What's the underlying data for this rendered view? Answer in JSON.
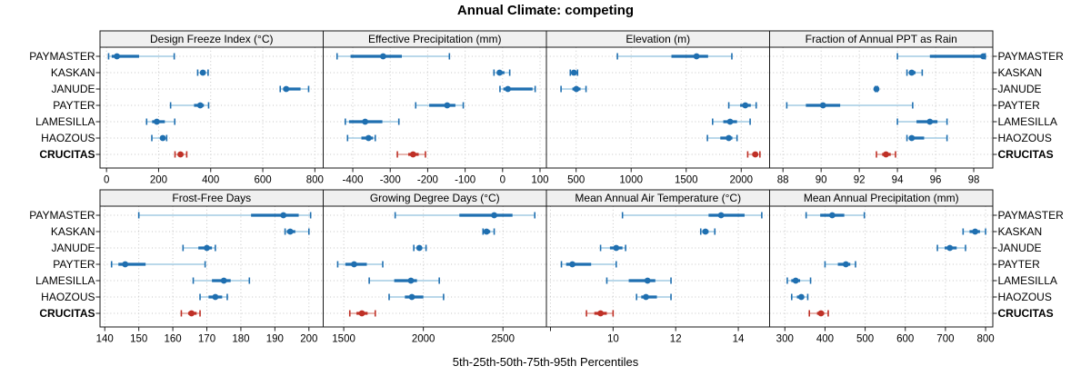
{
  "title": "Annual Climate: competing",
  "caption": "5th-25th-50th-75th-95th Percentiles",
  "locations": [
    "PAYMASTER",
    "KASKAN",
    "JANUDE",
    "PAYTER",
    "LAMESILLA",
    "HAOZOUS",
    "CRUCITAS"
  ],
  "highlighted_location": "CRUCITAS",
  "colors": {
    "series_blue": "#1f6fb0",
    "series_blue_light": "#a3cce4",
    "highlight_red": "#bf3026",
    "highlight_red_light": "#e0a098",
    "gridline": "#c6c6c6",
    "strip_background": "#f0f0f0",
    "panel_border": "#1a1a1a",
    "text": "#000000"
  },
  "chart_data": {
    "type": "dotplot",
    "note": "trellis of percentile intervals; each series value array is [5th,25th,50th,75th,95th] percentile",
    "percentiles": [
      5,
      25,
      50,
      75,
      95
    ],
    "categories": [
      "PAYMASTER",
      "KASKAN",
      "JANUDE",
      "PAYTER",
      "LAMESILLA",
      "HAOZOUS",
      "CRUCITAS"
    ],
    "panels": [
      {
        "title": "Design Freeze Index (°C)",
        "xlim": [
          -25,
          832
        ],
        "ticks": [
          {
            "v": 0,
            "label": "0"
          },
          {
            "v": 200,
            "label": "200"
          },
          {
            "v": 400,
            "label": "400"
          },
          {
            "v": 600,
            "label": "600"
          },
          {
            "v": 800,
            "label": "800"
          }
        ],
        "series": [
          {
            "name": "PAYMASTER",
            "values": [
              8,
              20,
              40,
              125,
              260
            ]
          },
          {
            "name": "KASKAN",
            "values": [
              350,
              360,
              370,
              378,
              390
            ]
          },
          {
            "name": "JANUDE",
            "values": [
              667,
              678,
              690,
              745,
              776
            ]
          },
          {
            "name": "PAYTER",
            "values": [
              246,
              336,
              360,
              374,
              392
            ]
          },
          {
            "name": "LAMESILLA",
            "values": [
              154,
              175,
              193,
              224,
              262
            ]
          },
          {
            "name": "HAOZOUS",
            "values": [
              174,
              208,
              216,
              225,
              231
            ]
          },
          {
            "name": "CRUCITAS",
            "values": [
              263,
              275,
              284,
              295,
              308
            ]
          }
        ]
      },
      {
        "title": "Effective Precipitation (mm)",
        "xlim": [
          -479,
          117
        ],
        "ticks": [
          {
            "v": -400,
            "label": "-400"
          },
          {
            "v": -300,
            "label": "-300"
          },
          {
            "v": -200,
            "label": "-200"
          },
          {
            "v": -100,
            "label": "-100"
          },
          {
            "v": 0,
            "label": "0"
          },
          {
            "v": 100,
            "label": "100"
          }
        ],
        "series": [
          {
            "name": "PAYMASTER",
            "values": [
              -442,
              -406,
              -319,
              -269,
              -142
            ]
          },
          {
            "name": "KASKAN",
            "values": [
              -23,
              -14,
              -8,
              5,
              19
            ]
          },
          {
            "name": "JANUDE",
            "values": [
              -7,
              2,
              14,
              80,
              87
            ]
          },
          {
            "name": "PAYTER",
            "values": [
              -232,
              -196,
              -148,
              -126,
              -105
            ]
          },
          {
            "name": "LAMESILLA",
            "values": [
              -420,
              -410,
              -367,
              -321,
              -277
            ]
          },
          {
            "name": "HAOZOUS",
            "values": [
              -414,
              -377,
              -358,
              -346,
              -340
            ]
          },
          {
            "name": "CRUCITAS",
            "values": [
              -281,
              -252,
              -239,
              -224,
              -206
            ]
          }
        ]
      },
      {
        "title": "Elevation (m)",
        "xlim": [
          230,
          2258
        ],
        "ticks": [
          {
            "v": 500,
            "label": "500"
          },
          {
            "v": 1000,
            "label": "1000"
          },
          {
            "v": 1500,
            "label": "1500"
          },
          {
            "v": 2000,
            "label": "2000"
          }
        ],
        "series": [
          {
            "name": "PAYMASTER",
            "values": [
              875,
              1366,
              1594,
              1699,
              1915
            ]
          },
          {
            "name": "KASKAN",
            "values": [
              447,
              465,
              480,
              495,
              513
            ]
          },
          {
            "name": "JANUDE",
            "values": [
              363,
              466,
              502,
              540,
              590
            ]
          },
          {
            "name": "PAYTER",
            "values": [
              1887,
              1990,
              2037,
              2087,
              2136
            ]
          },
          {
            "name": "LAMESILLA",
            "values": [
              1740,
              1837,
              1899,
              1962,
              2081
            ]
          },
          {
            "name": "HAOZOUS",
            "values": [
              1693,
              1810,
              1887,
              1920,
              1962
            ]
          },
          {
            "name": "CRUCITAS",
            "values": [
              2059,
              2100,
              2128,
              2150,
              2170
            ]
          }
        ]
      },
      {
        "title": "Fraction of Annual PPT as Rain",
        "xlim": [
          87.3,
          99.0
        ],
        "ticks": [
          {
            "v": 88,
            "label": "88"
          },
          {
            "v": 90,
            "label": "90"
          },
          {
            "v": 92,
            "label": "92"
          },
          {
            "v": 94,
            "label": "94"
          },
          {
            "v": 96,
            "label": "96"
          },
          {
            "v": 98,
            "label": "98"
          }
        ],
        "series": [
          {
            "name": "PAYMASTER",
            "values": [
              94.0,
              95.7,
              98.5,
              98.55,
              98.6
            ]
          },
          {
            "name": "KASKAN",
            "values": [
              94.5,
              94.65,
              94.75,
              94.95,
              95.3
            ]
          },
          {
            "name": "JANUDE",
            "values": [
              92.85,
              92.87,
              92.9,
              92.92,
              92.95
            ]
          },
          {
            "name": "PAYTER",
            "values": [
              88.2,
              89.2,
              90.1,
              91.0,
              94.8
            ]
          },
          {
            "name": "LAMESILLA",
            "values": [
              94.0,
              95.0,
              95.7,
              96.1,
              96.6
            ]
          },
          {
            "name": "HAOZOUS",
            "values": [
              94.5,
              94.6,
              94.75,
              95.4,
              96.6
            ]
          },
          {
            "name": "CRUCITAS",
            "values": [
              92.9,
              93.2,
              93.4,
              93.65,
              93.9
            ]
          }
        ]
      },
      {
        "title": "Frost-Free Days",
        "xlim": [
          138.6,
          204.2
        ],
        "ticks": [
          {
            "v": 140,
            "label": "140"
          },
          {
            "v": 150,
            "label": "150"
          },
          {
            "v": 160,
            "label": "160"
          },
          {
            "v": 170,
            "label": "170"
          },
          {
            "v": 180,
            "label": "180"
          },
          {
            "v": 190,
            "label": "190"
          },
          {
            "v": 200,
            "label": "200"
          }
        ],
        "series": [
          {
            "name": "PAYMASTER",
            "values": [
              150,
              183,
              192.5,
              197,
              200.5
            ]
          },
          {
            "name": "KASKAN",
            "values": [
              193,
              193.5,
              194.5,
              196,
              200
            ]
          },
          {
            "name": "JANUDE",
            "values": [
              163,
              167.5,
              170,
              171.5,
              172.5
            ]
          },
          {
            "name": "PAYTER",
            "values": [
              142,
              144,
              146,
              152,
              169.5
            ]
          },
          {
            "name": "LAMESILLA",
            "values": [
              166,
              171.5,
              175,
              177,
              182.5
            ]
          },
          {
            "name": "HAOZOUS",
            "values": [
              168,
              170.5,
              172.5,
              174.5,
              176
            ]
          },
          {
            "name": "CRUCITAS",
            "values": [
              162.5,
              164.5,
              165.5,
              167,
              168
            ]
          }
        ]
      },
      {
        "title": "Growing Degree Days (°C)",
        "xlim": [
          1371,
          2773
        ],
        "ticks": [
          {
            "v": 1500,
            "label": "1500"
          },
          {
            "v": 2000,
            "label": "2000"
          },
          {
            "v": 2500,
            "label": "2500"
          }
        ],
        "series": [
          {
            "name": "PAYMASTER",
            "values": [
              1823,
              2226,
              2445,
              2560,
              2700
            ]
          },
          {
            "name": "KASKAN",
            "values": [
              2375,
              2385,
              2397,
              2420,
              2445
            ]
          },
          {
            "name": "JANUDE",
            "values": [
              1940,
              1960,
              1975,
              1990,
              2017
            ]
          },
          {
            "name": "PAYTER",
            "values": [
              1462,
              1510,
              1565,
              1645,
              1745
            ]
          },
          {
            "name": "LAMESILLA",
            "values": [
              1660,
              1817,
              1922,
              1960,
              2100
            ]
          },
          {
            "name": "HAOZOUS",
            "values": [
              1785,
              1884,
              1928,
              2000,
              2127
            ]
          },
          {
            "name": "CRUCITAS",
            "values": [
              1538,
              1580,
              1614,
              1650,
              1698
            ]
          }
        ]
      },
      {
        "title": "Mean Annual Air Temperature (°C)",
        "xlim": [
          7.87,
          15.0
        ],
        "ticks": [
          {
            "v": 8,
            "label": ""
          },
          {
            "v": 10,
            "label": "10"
          },
          {
            "v": 12,
            "label": "12"
          },
          {
            "v": 14,
            "label": "14"
          }
        ],
        "series": [
          {
            "name": "PAYMASTER",
            "values": [
              10.3,
              13.05,
              13.45,
              14.2,
              14.75
            ]
          },
          {
            "name": "KASKAN",
            "values": [
              12.8,
              12.85,
              12.95,
              13.05,
              13.25
            ]
          },
          {
            "name": "JANUDE",
            "values": [
              9.6,
              9.9,
              10.1,
              10.3,
              10.4
            ]
          },
          {
            "name": "PAYTER",
            "values": [
              8.35,
              8.5,
              8.7,
              9.3,
              10.1
            ]
          },
          {
            "name": "LAMESILLA",
            "values": [
              9.8,
              10.5,
              11.1,
              11.35,
              11.85
            ]
          },
          {
            "name": "HAOZOUS",
            "values": [
              10.75,
              10.9,
              11.05,
              11.4,
              11.85
            ]
          },
          {
            "name": "CRUCITAS",
            "values": [
              9.15,
              9.4,
              9.6,
              9.8,
              10.0
            ]
          }
        ]
      },
      {
        "title": "Mean Annual Precipitation (mm)",
        "xlim": [
          262,
          818
        ],
        "ticks": [
          {
            "v": 300,
            "label": "300"
          },
          {
            "v": 400,
            "label": "400"
          },
          {
            "v": 500,
            "label": "500"
          },
          {
            "v": 600,
            "label": "600"
          },
          {
            "v": 700,
            "label": "700"
          },
          {
            "v": 800,
            "label": "800"
          }
        ],
        "series": [
          {
            "name": "PAYMASTER",
            "values": [
              353,
              388,
              418,
              448,
              498
            ]
          },
          {
            "name": "KASKAN",
            "values": [
              744,
              760,
              774,
              786,
              800
            ]
          },
          {
            "name": "JANUDE",
            "values": [
              680,
              698,
              711,
              728,
              750
            ]
          },
          {
            "name": "PAYTER",
            "values": [
              400,
              432,
              452,
              463,
              476
            ]
          },
          {
            "name": "LAMESILLA",
            "values": [
              306,
              316,
              327,
              338,
              364
            ]
          },
          {
            "name": "HAOZOUS",
            "values": [
              317,
              330,
              341,
              348,
              357
            ]
          },
          {
            "name": "CRUCITAS",
            "values": [
              361,
              380,
              390,
              398,
              408
            ]
          }
        ]
      }
    ]
  }
}
